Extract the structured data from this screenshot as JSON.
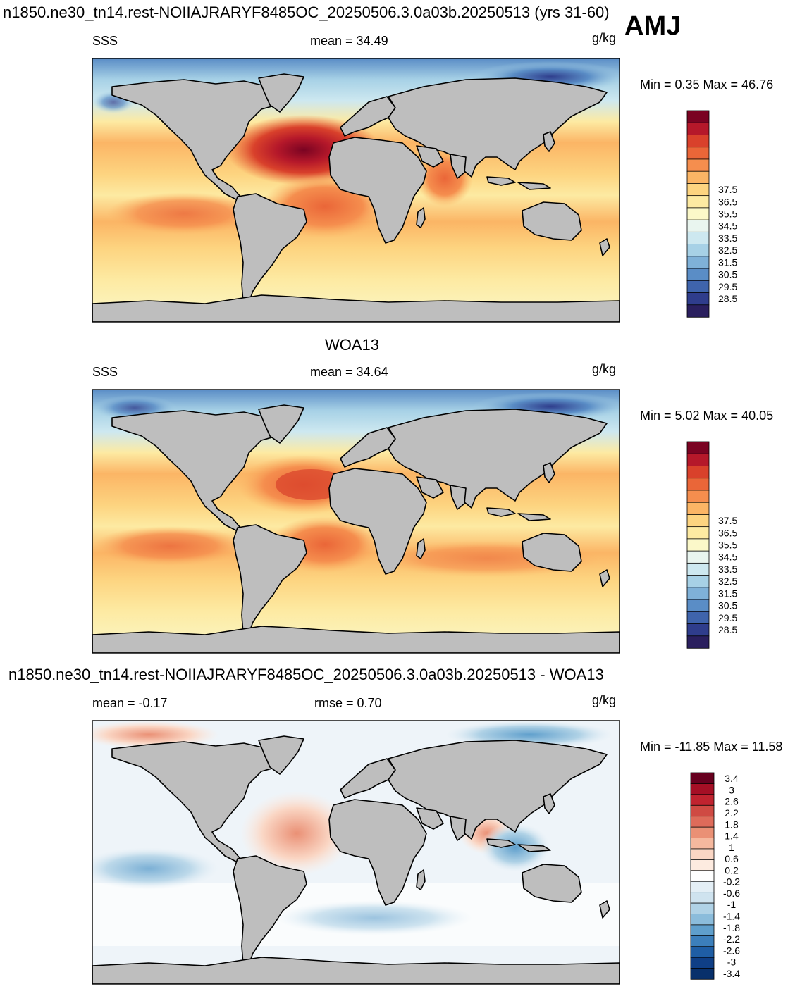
{
  "header": {
    "title": "n1850.ne30_tn14.rest-NOIIAJRARYF8485OC_20250506.3.0a03b.20250513 (yrs 31-60)",
    "season": "AMJ"
  },
  "panel2_title": "WOA13",
  "panel3_title": "n1850.ne30_tn14.rest-NOIIAJRARYF8485OC_20250506.3.0a03b.20250513 - WOA13",
  "panels": [
    {
      "left_label": "SSS",
      "center_label": "mean =  34.49",
      "units": "g/kg",
      "minmax": "Min =    0.35 Max =  46.76"
    },
    {
      "left_label": "SSS",
      "center_label": "mean =  34.64",
      "units": "g/kg",
      "minmax": "Min =    5.02 Max =  40.05"
    },
    {
      "left_label": "mean =  -0.17",
      "center_label": "rmse =    0.70",
      "units": "g/kg",
      "minmax": "Min = -11.85 Max =  11.58"
    }
  ],
  "chart_data": [
    {
      "type": "heatmap",
      "title": "SSS",
      "units": "g/kg",
      "mean": 34.49,
      "min": 0.35,
      "max": 46.76,
      "colorbar_levels": [
        28.5,
        29.5,
        30.5,
        31.5,
        32.5,
        33.5,
        34.5,
        35.5,
        36.5,
        37.5
      ],
      "colorbar_colors": [
        "#2a1f5e",
        "#2f3d8c",
        "#3f64ac",
        "#5a8dc6",
        "#7fb1d8",
        "#a7d1e6",
        "#cde8f0",
        "#e9f5ef",
        "#fbf8c9",
        "#fdeaa2",
        "#fdd480",
        "#fbb565",
        "#f58e4e",
        "#ea6638",
        "#d9412b",
        "#b5182a",
        "#7a0322"
      ]
    },
    {
      "type": "heatmap",
      "title": "SSS",
      "units": "g/kg",
      "mean": 34.64,
      "min": 5.02,
      "max": 40.05,
      "colorbar_levels": [
        28.5,
        29.5,
        30.5,
        31.5,
        32.5,
        33.5,
        34.5,
        35.5,
        36.5,
        37.5
      ],
      "colorbar_colors": [
        "#2a1f5e",
        "#2f3d8c",
        "#3f64ac",
        "#5a8dc6",
        "#7fb1d8",
        "#a7d1e6",
        "#cde8f0",
        "#e9f5ef",
        "#fbf8c9",
        "#fdeaa2",
        "#fdd480",
        "#fbb565",
        "#f58e4e",
        "#ea6638",
        "#d9412b",
        "#b5182a",
        "#7a0322"
      ]
    },
    {
      "type": "heatmap",
      "title": "",
      "units": "g/kg",
      "mean": -0.17,
      "rmse": 0.7,
      "min": -11.85,
      "max": 11.58,
      "colorbar_levels": [
        3.4,
        3,
        2.6,
        2.2,
        1.8,
        1.4,
        1,
        0.6,
        0.2,
        -0.2,
        -0.6,
        -1,
        -1.4,
        -1.8,
        -2.2,
        -2.6,
        -3,
        -3.4
      ],
      "colorbar_colors": [
        "#67001f",
        "#a50f25",
        "#c0232f",
        "#cf4a43",
        "#de6b5a",
        "#ea9075",
        "#f5b89e",
        "#fad6c4",
        "#fdebe0",
        "#ffffff",
        "#e4eff6",
        "#cfe3ef",
        "#b0d2e6",
        "#8bbcdb",
        "#5f9fcc",
        "#3c7fbb",
        "#1f5ea5",
        "#0f3f86",
        "#08306b"
      ]
    }
  ]
}
